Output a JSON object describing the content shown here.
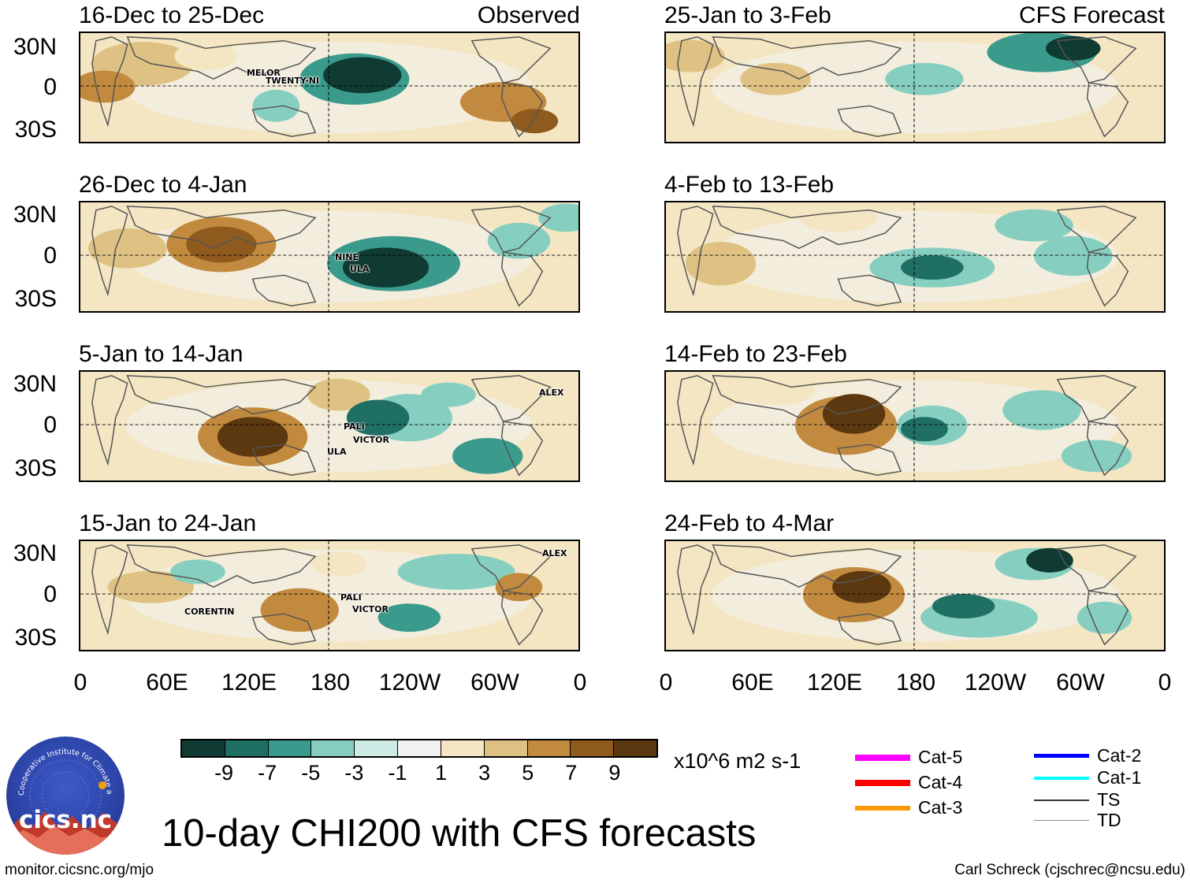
{
  "main_title": "10-day CHI200 with CFS forecasts",
  "observed_label": "Observed",
  "forecast_label": "CFS Forecast",
  "y_ticks": [
    "30N",
    "0",
    "30S"
  ],
  "x_ticks": [
    "0",
    "60E",
    "120E",
    "180",
    "120W",
    "60W",
    "0"
  ],
  "panels": [
    {
      "title": "16-Dec to 25-Dec",
      "storms": [
        "MELOR",
        "TWENTY-NI"
      ]
    },
    {
      "title": "26-Dec to 4-Jan",
      "storms": [
        "NINE",
        "ULA"
      ]
    },
    {
      "title": "5-Jan to 14-Jan",
      "storms": [
        "ALEX",
        "PALI",
        "VICTOR",
        "ULA"
      ]
    },
    {
      "title": "15-Jan to 24-Jan",
      "storms": [
        "ALEX",
        "CORENTIN",
        "PALI",
        "VICTOR"
      ]
    },
    {
      "title": "25-Jan to 3-Feb",
      "storms": []
    },
    {
      "title": "4-Feb to 13-Feb",
      "storms": []
    },
    {
      "title": "14-Feb to 23-Feb",
      "storms": []
    },
    {
      "title": "24-Feb to 4-Mar",
      "storms": []
    }
  ],
  "colorbar": {
    "colors": [
      "#0f3b33",
      "#1f6f64",
      "#3a9a8c",
      "#86cfc0",
      "#cdebe4",
      "#f2f2f2",
      "#f4e6c3",
      "#dfc283",
      "#c28a3f",
      "#8f5a1e",
      "#5b3810"
    ],
    "ticks": [
      "-9",
      "-7",
      "-5",
      "-3",
      "-1",
      "1",
      "3",
      "5",
      "7",
      "9"
    ],
    "units": "x10^6 m2 s-1"
  },
  "legend": [
    {
      "label": "Cat-5",
      "color": "#ff00ff",
      "width": 8
    },
    {
      "label": "Cat-4",
      "color": "#ff0000",
      "width": 8
    },
    {
      "label": "Cat-3",
      "color": "#ff9900",
      "width": 6
    },
    {
      "label": "Cat-2",
      "color": "#0000ff",
      "width": 5
    },
    {
      "label": "Cat-1",
      "color": "#00ffff",
      "width": 4
    },
    {
      "label": "TS",
      "color": "#333333",
      "width": 2
    },
    {
      "label": "TD",
      "color": "#888888",
      "width": 1
    }
  ],
  "logo_text": "cics.nc",
  "logo_ring_text": "Cooperative Institute for Climate and Satellites",
  "footer_left": "monitor.cicsnc.org/mjo",
  "footer_right": "Carl Schreck (cjschrec@ncsu.edu)"
}
